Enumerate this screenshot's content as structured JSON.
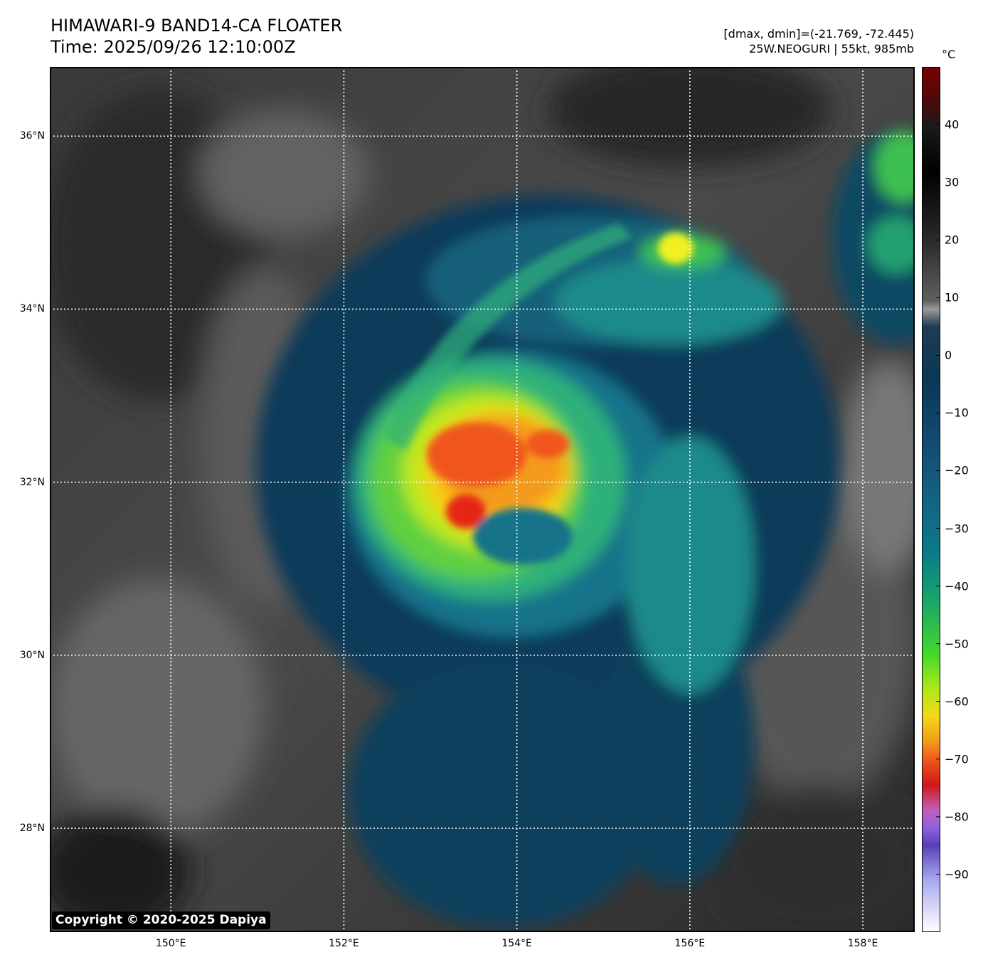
{
  "header": {
    "title_line1": "HIMAWARI-9 BAND14-CA FLOATER",
    "title_line2": "Time: 2025/09/26 12:10:00Z",
    "range_text": "[dmax, dmin]=(-21.769, -72.445)",
    "storm_text": "25W.NEOGURI | 55kt, 985mb"
  },
  "map": {
    "lon_range": [
      148.6,
      158.6
    ],
    "lat_range": [
      26.8,
      36.8
    ],
    "lat_ticks": [
      {
        "value": 36,
        "label": "36°N"
      },
      {
        "value": 34,
        "label": "34°N"
      },
      {
        "value": 32,
        "label": "32°N"
      },
      {
        "value": 30,
        "label": "30°N"
      },
      {
        "value": 28,
        "label": "28°N"
      }
    ],
    "lon_ticks": [
      {
        "value": 150,
        "label": "150°E"
      },
      {
        "value": 152,
        "label": "152°E"
      },
      {
        "value": 154,
        "label": "154°E"
      },
      {
        "value": 156,
        "label": "156°E"
      },
      {
        "value": 158,
        "label": "158°E"
      }
    ],
    "gridlines": "dotted white",
    "storm_center": {
      "lon": 153.6,
      "lat": 31.8
    }
  },
  "colorbar": {
    "unit": "°C",
    "range": [
      -100,
      50
    ],
    "ticks": [
      40,
      30,
      20,
      10,
      0,
      -10,
      -20,
      -30,
      -40,
      -50,
      -60,
      -70,
      -80,
      -90
    ],
    "tick_labels": [
      "40",
      "30",
      "20",
      "10",
      "0",
      "−10",
      "−20",
      "−30",
      "−40",
      "−50",
      "−60",
      "−70",
      "−80",
      "−90"
    ]
  },
  "footer": {
    "copyright": "Copyright © 2020-2025 Dapiya"
  }
}
